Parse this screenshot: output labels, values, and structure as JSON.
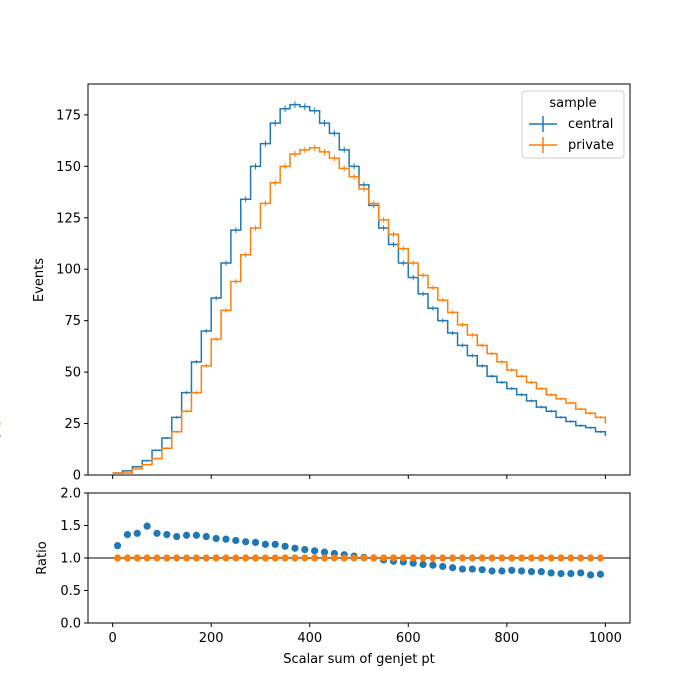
{
  "chart_data": [
    {
      "type": "line",
      "step": true,
      "ylabel": "Events",
      "xlim": [
        -50,
        1050
      ],
      "ylim": [
        0,
        190
      ],
      "xticks": [
        0,
        200,
        400,
        600,
        800,
        1000
      ],
      "yticks": [
        0,
        25,
        50,
        75,
        100,
        125,
        150,
        175
      ],
      "ytick_labels": [
        "0",
        "25",
        "50",
        "75",
        "100",
        "125",
        "150",
        "175"
      ],
      "bin_edges": [
        0,
        20,
        40,
        60,
        80,
        100,
        120,
        140,
        160,
        180,
        200,
        220,
        240,
        260,
        280,
        300,
        320,
        340,
        360,
        380,
        400,
        420,
        440,
        460,
        480,
        500,
        520,
        540,
        560,
        580,
        600,
        620,
        640,
        660,
        680,
        700,
        720,
        740,
        760,
        780,
        800,
        820,
        840,
        860,
        880,
        900,
        920,
        940,
        960,
        980,
        1000
      ],
      "legend": {
        "title": "sample",
        "position": "top-right"
      },
      "series": [
        {
          "name": "central",
          "color": "#1f77b4",
          "values": [
            1,
            2,
            4,
            7,
            12,
            18,
            28,
            40,
            55,
            70,
            86,
            103,
            119,
            134,
            150,
            161,
            171,
            178,
            180,
            179,
            177,
            171,
            166,
            158,
            150,
            141,
            131,
            120,
            112,
            103,
            96,
            88,
            81,
            75,
            69,
            63,
            58,
            53,
            48,
            45,
            42,
            39,
            36,
            33,
            31,
            28,
            26,
            24,
            23,
            21,
            19
          ]
        },
        {
          "name": "private",
          "color": "#ff7f0e",
          "values": [
            1,
            1,
            3,
            5,
            8,
            13,
            21,
            31,
            40,
            53,
            66,
            80,
            94,
            107,
            120,
            132,
            142,
            150,
            156,
            158,
            159,
            157,
            154,
            149,
            145,
            139,
            132,
            124,
            117,
            110,
            103,
            97,
            91,
            85,
            79,
            73,
            68,
            63,
            59,
            55,
            51,
            48,
            45,
            42,
            39,
            37,
            35,
            32,
            30,
            28,
            25
          ]
        }
      ]
    },
    {
      "type": "scatter",
      "ylabel": "Ratio",
      "xlabel": "Scalar sum of genjet pt",
      "xlim": [
        -50,
        1050
      ],
      "ylim": [
        0,
        2
      ],
      "xticks": [
        0,
        200,
        400,
        600,
        800,
        1000
      ],
      "xtick_labels": [
        "0",
        "200",
        "400",
        "600",
        "800",
        "1000"
      ],
      "yticks": [
        0,
        0.5,
        1,
        1.5,
        2
      ],
      "ytick_labels": [
        "0.0",
        "0.5",
        "1.0",
        "1.5",
        "2.0"
      ],
      "reference_line": 1.0,
      "x": [
        10,
        30,
        50,
        70,
        90,
        110,
        130,
        150,
        170,
        190,
        210,
        230,
        250,
        270,
        290,
        310,
        330,
        350,
        370,
        390,
        410,
        430,
        450,
        470,
        490,
        510,
        530,
        550,
        570,
        590,
        610,
        630,
        650,
        670,
        690,
        710,
        730,
        750,
        770,
        790,
        810,
        830,
        850,
        870,
        890,
        910,
        930,
        950,
        970,
        990
      ],
      "series": [
        {
          "name": "central",
          "color": "#1f77b4",
          "values": [
            1.19,
            1.36,
            1.38,
            1.49,
            1.38,
            1.36,
            1.33,
            1.35,
            1.35,
            1.33,
            1.3,
            1.29,
            1.27,
            1.25,
            1.24,
            1.21,
            1.21,
            1.18,
            1.15,
            1.13,
            1.11,
            1.09,
            1.07,
            1.05,
            1.03,
            1.01,
            1.0,
            0.97,
            0.95,
            0.94,
            0.92,
            0.9,
            0.89,
            0.87,
            0.85,
            0.83,
            0.83,
            0.82,
            0.8,
            0.8,
            0.81,
            0.8,
            0.79,
            0.79,
            0.77,
            0.76,
            0.76,
            0.77,
            0.74,
            0.75
          ]
        },
        {
          "name": "private",
          "color": "#ff7f0e",
          "values": [
            1,
            1,
            1,
            1,
            1,
            1,
            1,
            1,
            1,
            1,
            1,
            1,
            1,
            1,
            1,
            1,
            1,
            1,
            1,
            1,
            1,
            1,
            1,
            1,
            1,
            1,
            1,
            1,
            1,
            1,
            1,
            1,
            1,
            1,
            1,
            1,
            1,
            1,
            1,
            1,
            1,
            1,
            1,
            1,
            1,
            1,
            1,
            1,
            1,
            1
          ]
        }
      ]
    }
  ]
}
